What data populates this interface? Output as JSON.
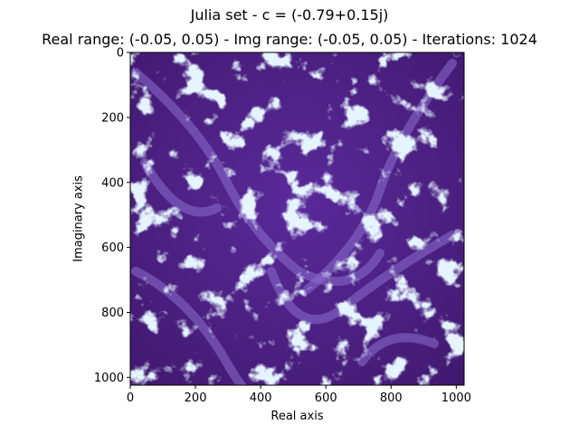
{
  "chart_data": {
    "type": "heatmap",
    "title": "Julia set - c = (-0.79+0.15j)",
    "subtitle": "Real range: (-0.05, 0.05) - Img range: (-0.05, 0.05) - Iterations: 1024",
    "xlabel": "Real axis",
    "ylabel": "Imaginary axis",
    "xlim": [
      0,
      1024
    ],
    "ylim": [
      1024,
      0
    ],
    "x_ticks": [
      0,
      200,
      400,
      600,
      800,
      1000
    ],
    "y_ticks": [
      0,
      200,
      400,
      600,
      800,
      1000
    ],
    "grid": false,
    "colors": {
      "background": "#4b1e80",
      "low": "#4a1a7a",
      "mid": "#6a4bb5",
      "high": "#d8f0ff"
    }
  }
}
